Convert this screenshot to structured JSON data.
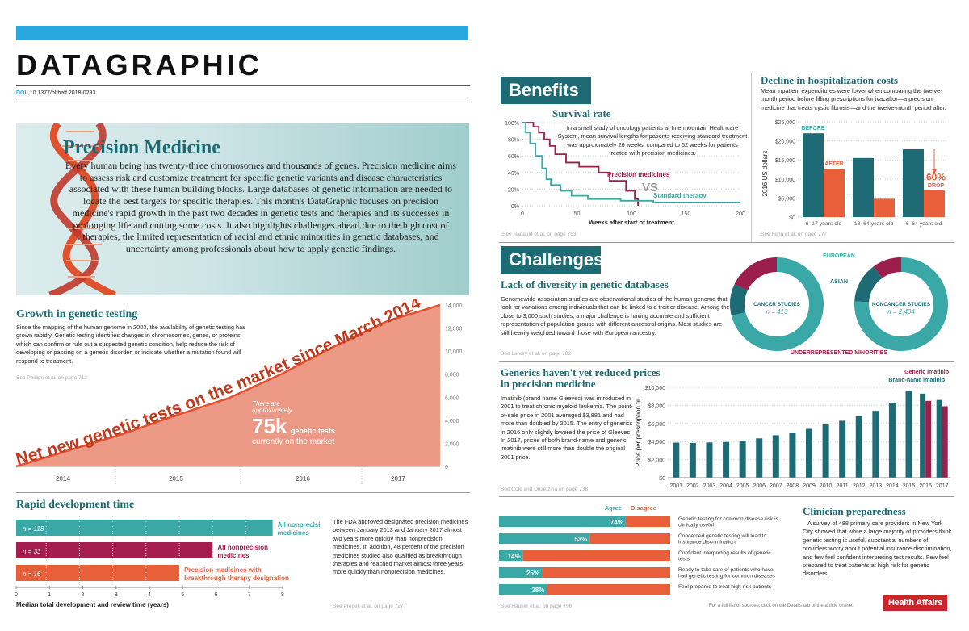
{
  "header": {
    "title": "DATAGRAPHIC",
    "doi_label": "DOI:",
    "doi": "10.1377/hlthaff.2018-0293"
  },
  "precision": {
    "title": "Precision Medicine",
    "body": "Every human being has twenty-three chromosomes and thousands of genes. Precision medicine aims to assess risk and customize treatment for specific genetic variants and disease characteristics associated with these human building blocks. Large databases of genetic information are needed to locate the best targets for specific therapies. This month's DataGraphic focuses on precision medicine's rapid growth in the past two decades in genetic tests and therapies and its successes in prolonging life and cutting some costs. It also highlights challenges ahead due to the high cost of therapies, the limited representation of racial and ethnic minorities in genetic databases, and uncertainty among professionals about how to apply genetic findings."
  },
  "growth": {
    "title": "Growth in genetic testing",
    "body": "Since the mapping of the human genome in 2003, the availability of genetic testing has grown rapidly. Genetic testing identifies changes in chromosomes, genes, or proteins, which can confirm or rule out a suspected genetic condition, help reduce the risk of developing or passing on a genetic disorder, or indicate whether a mutation found will respond to treatment.",
    "source": "See Phillips et al. on page 712",
    "curve_label": "Net new genetic tests on the market since March 2014",
    "callout_pre": "There are approximately",
    "callout_big": "75k",
    "callout_unit": "genetic tests",
    "callout_post": "currently on the market"
  },
  "rapid": {
    "title": "Rapid development time",
    "xlabel": "Median total development and review time (years)",
    "text": "The FDA approved designated precision medicines between January 2013 and January 2017 almost two years more quickly than nonprecision medicines. In addition, 48 percent of the precision medicines studied also qualified as breakthrough therapies and reached market almost three years more quickly than nonprecision medicines.",
    "source": "See Pregelj et al. on page 727"
  },
  "benefits": {
    "header": "Benefits"
  },
  "survival": {
    "title": "Survival rate",
    "desc": "In a small study of oncology patients at Intermountain Healthcare System, mean survival lengths for patients receiving standard treatment was approximately 26 weeks, compared to 52 weeks for patients treated with precision medicines.",
    "vs": "VS",
    "source": "See Nadauld et al. on page 753"
  },
  "hosp": {
    "title": "Decline in hospitalization costs",
    "desc": "Mean inpatient expenditures were lower when comparing the twelve-month period before filling prescriptions for ivacaftor—a precision medicine that treats cystic fibrosis—and the twelve-month period after.",
    "before": "BEFORE",
    "after": "AFTER",
    "drop_pct": "60%",
    "drop": "DROP",
    "source": "See Feng et al. on page 777"
  },
  "challenges": {
    "header": "Challenges"
  },
  "diversity": {
    "title": "Lack of diversity in genetic databases",
    "body": "Genomewide association studies are observational studies of the human genome that look for variations among individuals that can be linked to a trait or disease. Among the close to 3,000 such studies, a major challenge is having accurate and sufficient representation of population groups with different ancestral origins. Most studies are still heavily weighted toward those with European ancestry.",
    "source": "See Landry et al. on page 782",
    "european": "EUROPEAN",
    "asian": "ASIAN",
    "under": "UNDERREPRESENTED MINORITIES",
    "cancer_label": "CANCER STUDIES",
    "cancer_n": "n = 413",
    "noncancer_label": "NONCANCER STUDIES",
    "noncancer_n": "n = 2,404"
  },
  "generics": {
    "title": "Generics haven't yet reduced prices in precision medicine",
    "body": "Imatinib (brand name Gleevec) was introduced in 2001 to treat chronic myeloid leukemia. The point-of-sale price in 2001 averaged $3,881 and had more than doubled by 2015. The entry of generics in 2016 only slightly lowered the price of Gleevec. In 2017, prices of both brand-name and generic imatinib were still more than double the original 2001 price.",
    "source": "See Cole and Dusetzina on page 738",
    "legend_generic": "Generic imatinib",
    "legend_brand": "Brand-name imatinib"
  },
  "clinician": {
    "title": "Clinician preparedness",
    "body": "A survey of 488 primary care providers in New York City showed that while a large majority of providers think genetic testing is useful, substantial numbers of providers worry about potential insurance discrimination, and few feel confident interpreting test results. Few feel prepared to treat patients at high risk for genetic disorders.",
    "agree": "Agree",
    "disagree": "Disagree",
    "source": "See Hauser et al. on page 796"
  },
  "footer": {
    "note": "For a full list of sources, click on the Details tab of the article online.",
    "brand": "Health Affairs"
  },
  "chart_data": [
    {
      "type": "area",
      "title": "Growth in genetic testing",
      "x": [
        "Mar 2014",
        "Jul 2014",
        "Jan 2015",
        "Jul 2015",
        "Jan 2016",
        "Jul 2016",
        "Jan 2017",
        "Jul 2017",
        "Dec 2017"
      ],
      "values": [
        0,
        1400,
        2800,
        4400,
        5900,
        8000,
        10400,
        12600,
        14000
      ],
      "xticks": [
        "2014",
        "2015",
        "2016",
        "2017"
      ],
      "yticks": [
        "0",
        "2,000",
        "4,000",
        "6,000",
        "8,000",
        "10,000",
        "12,000",
        "14,000"
      ],
      "ylim": [
        0,
        14000
      ]
    },
    {
      "type": "bar",
      "title": "Rapid development time",
      "categories": [
        "All nonprecision medicines",
        "All precision medicines",
        "Precision medicines with breakthrough therapy designation"
      ],
      "n_labels": [
        "n = 118",
        "n = 33",
        "n = 16"
      ],
      "values": [
        7.7,
        5.9,
        4.9
      ],
      "colors": [
        "#3aa8a6",
        "#a61e4d",
        "#e95f3a"
      ],
      "xticks": [
        "0",
        "1",
        "2",
        "3",
        "4",
        "5",
        "6",
        "7",
        "8"
      ],
      "xlim": [
        0,
        8
      ]
    },
    {
      "type": "line",
      "title": "Survival rate",
      "xlabel": "Weeks after start of treatment",
      "series": [
        {
          "name": "Precision medicines",
          "color": "#9b1f4a",
          "points": [
            [
              0,
              100
            ],
            [
              10,
              95
            ],
            [
              15,
              88
            ],
            [
              20,
              80
            ],
            [
              25,
              72
            ],
            [
              30,
              62
            ],
            [
              40,
              52
            ],
            [
              52,
              47
            ],
            [
              70,
              40
            ],
            [
              80,
              30
            ],
            [
              95,
              18
            ],
            [
              103,
              8
            ],
            [
              106,
              0
            ]
          ]
        },
        {
          "name": "Standard therapy",
          "color": "#3aa8a6",
          "points": [
            [
              0,
              100
            ],
            [
              3,
              88
            ],
            [
              7,
              75
            ],
            [
              12,
              60
            ],
            [
              18,
              45
            ],
            [
              22,
              32
            ],
            [
              26,
              25
            ],
            [
              35,
              18
            ],
            [
              45,
              12
            ],
            [
              60,
              8
            ],
            [
              90,
              6
            ],
            [
              120,
              4
            ],
            [
              200,
              4
            ]
          ]
        }
      ],
      "xticks": [
        "0",
        "50",
        "100",
        "150",
        "200"
      ],
      "yticks": [
        "0%",
        "20%",
        "40%",
        "60%",
        "80%",
        "100%"
      ],
      "xlim": [
        0,
        200
      ],
      "ylim": [
        0,
        100
      ]
    },
    {
      "type": "bar",
      "title": "Decline in hospitalization costs",
      "ylabel": "2016 US dollars",
      "categories": [
        "6–17 years old",
        "18–64 years old",
        "6–64 years old"
      ],
      "series": [
        {
          "name": "BEFORE",
          "values": [
            22000,
            15500,
            17800
          ]
        },
        {
          "name": "AFTER",
          "values": [
            12500,
            4800,
            7200
          ]
        }
      ],
      "yticks": [
        "$0",
        "$5,000",
        "$10,000",
        "$15,000",
        "$20,000",
        "$25,000"
      ],
      "ylim": [
        0,
        25000
      ]
    },
    {
      "type": "pie",
      "title": "CANCER STUDIES",
      "segments": [
        {
          "name": "EUROPEAN",
          "value": 71
        },
        {
          "name": "ASIAN",
          "value": 11
        },
        {
          "name": "UNDERREPRESENTED MINORITIES",
          "value": 18
        }
      ]
    },
    {
      "type": "pie",
      "title": "NONCANCER STUDIES",
      "segments": [
        {
          "name": "EUROPEAN",
          "value": 76
        },
        {
          "name": "ASIAN",
          "value": 14
        },
        {
          "name": "UNDERREPRESENTED MINORITIES",
          "value": 10
        }
      ]
    },
    {
      "type": "bar",
      "title": "Generics haven't yet reduced prices in precision medicine",
      "ylabel": "Price per prescription fill",
      "categories": [
        "2001",
        "2002",
        "2003",
        "2004",
        "2005",
        "2006",
        "2007",
        "2008",
        "2009",
        "2010",
        "2011",
        "2012",
        "2013",
        "2014",
        "2015",
        "2016",
        "2017"
      ],
      "series": [
        {
          "name": "Brand-name imatinib",
          "values": [
            3881,
            3850,
            3900,
            3950,
            4100,
            4350,
            4700,
            5000,
            5400,
            5900,
            6300,
            6800,
            7400,
            8300,
            9600,
            9300,
            8600
          ]
        },
        {
          "name": "Generic imatinib",
          "values": [
            null,
            null,
            null,
            null,
            null,
            null,
            null,
            null,
            null,
            null,
            null,
            null,
            null,
            null,
            null,
            8500,
            7900
          ]
        }
      ],
      "yticks": [
        "$0",
        "$2,000",
        "$4,000",
        "$6,000",
        "$8,000",
        "$10,000"
      ],
      "ylim": [
        0,
        10000
      ]
    },
    {
      "type": "bar",
      "title": "Clinician preparedness",
      "statements": [
        "Genetic testing for common disease risk is clinically useful",
        "Concerned genetic testing will lead to insurance discrimination",
        "Confident interpreting results of genetic tests",
        "Ready to take care of patients who have had genetic testing for common diseases",
        "Feel prepared to treat high-risk patients"
      ],
      "agree": [
        74,
        53,
        14,
        25,
        28
      ],
      "labels": [
        "74%",
        "53%",
        "14%",
        "25%",
        "28%"
      ]
    }
  ]
}
